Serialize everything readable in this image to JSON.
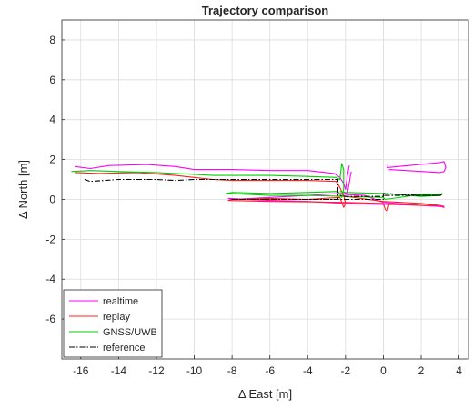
{
  "chart_data": {
    "type": "line",
    "title": "Trajectory comparison",
    "xlabel": "Δ East [m]",
    "ylabel": "Δ North [m]",
    "xlim": [
      -17,
      4.5
    ],
    "ylim": [
      -8,
      9
    ],
    "xticks": [
      -16,
      -14,
      -12,
      -10,
      -8,
      -6,
      -4,
      -2,
      0,
      2,
      4
    ],
    "yticks": [
      -6,
      -4,
      -2,
      0,
      2,
      4,
      6,
      8
    ],
    "xtick_labels": [
      "-16",
      "-14",
      "-12",
      "-10",
      "-8",
      "-6",
      "-4",
      "-2",
      "0",
      "2",
      "4"
    ],
    "ytick_labels": [
      "-6",
      "-4",
      "-2",
      "0",
      "2",
      "4",
      "6",
      "8"
    ],
    "grid": true,
    "legend_position": "bottom-left",
    "series": [
      {
        "name": "realtime",
        "color": "#ff00ff",
        "dash": "solid",
        "x": [
          -16.3,
          -15.5,
          -14.5,
          -12.5,
          -11.0,
          -10.0,
          -8.0,
          -6.0,
          -4.0,
          -2.6,
          -2.3,
          -2.1,
          -2.0,
          -1.9,
          -1.8,
          null,
          -1.7,
          -1.9,
          -2.3,
          -4.0,
          -6.0,
          -8.0,
          -8.2,
          -6.0,
          -4.0,
          -2.0,
          0.0,
          1.0,
          2.0,
          3.0,
          3.2,
          3.0,
          2.0,
          0.0,
          -1.0,
          -2.0,
          -2.2,
          null,
          0.2,
          0.2,
          3.0,
          3.2,
          3.3,
          3.2,
          3.0,
          0.3
        ],
        "y": [
          1.65,
          1.55,
          1.7,
          1.75,
          1.65,
          1.5,
          1.5,
          1.45,
          1.45,
          1.3,
          1.1,
          0.8,
          0.5,
          1.2,
          1.7,
          null,
          1.4,
          0.3,
          0.3,
          0.2,
          0.1,
          0.0,
          0.05,
          -0.05,
          -0.1,
          -0.2,
          -0.25,
          -0.25,
          -0.3,
          -0.35,
          -0.4,
          -0.35,
          -0.3,
          -0.15,
          0.2,
          0.25,
          0.3,
          null,
          1.75,
          1.6,
          1.85,
          1.9,
          1.6,
          1.4,
          1.35,
          1.5
        ]
      },
      {
        "name": "replay",
        "color": "#ff2020",
        "dash": "solid",
        "x": [
          -16.3,
          -15.0,
          -13.0,
          -11.0,
          -10.0,
          -9.0,
          -8.0,
          -6.0,
          -4.0,
          -2.5,
          -2.3,
          -2.1,
          -2.0,
          -2.1,
          -2.3,
          -4.0,
          -6.0,
          -8.0,
          -8.2,
          -6.0,
          -4.0,
          -2.0,
          0.0,
          0.1,
          0.2,
          0.3,
          2.0,
          3.0,
          3.2,
          3.0,
          2.0,
          0.0,
          -2.0,
          -2.2
        ],
        "y": [
          1.35,
          1.3,
          1.35,
          1.2,
          1.1,
          1.0,
          0.95,
          0.95,
          0.95,
          0.9,
          0.6,
          0.2,
          -0.2,
          -0.4,
          0.1,
          0.0,
          0.05,
          0.0,
          -0.05,
          -0.1,
          -0.12,
          -0.15,
          -0.2,
          -0.5,
          -0.6,
          -0.25,
          -0.3,
          -0.3,
          -0.35,
          -0.3,
          -0.2,
          -0.1,
          0.15,
          0.2
        ]
      },
      {
        "name": "GNSS/UWB",
        "color": "#00d000",
        "dash": "solid",
        "x": [
          -16.5,
          -15.5,
          -14.0,
          -12.0,
          -10.0,
          -9.0,
          -8.0,
          -6.0,
          -4.0,
          -2.5,
          -2.3,
          -2.2,
          -2.1,
          -2.1,
          -2.2,
          -2.4,
          -4.0,
          -6.0,
          -8.0,
          -8.3,
          -6.0,
          -4.0,
          -2.0,
          0.0,
          0.1,
          2.0,
          3.0,
          3.1,
          3.0,
          2.0,
          0.0,
          -2.0,
          -2.3
        ],
        "y": [
          1.4,
          1.45,
          1.4,
          1.35,
          1.25,
          1.2,
          1.2,
          1.2,
          1.15,
          1.1,
          1.0,
          1.8,
          1.5,
          0.5,
          0.1,
          0.4,
          0.35,
          0.3,
          0.35,
          0.3,
          0.2,
          0.2,
          0.15,
          0.1,
          0.0,
          0.25,
          0.25,
          0.3,
          0.2,
          0.15,
          0.3,
          0.35,
          0.4
        ]
      },
      {
        "name": "reference",
        "color": "#000000",
        "dash": "dashdot",
        "x": [
          -15.8,
          -15.5,
          -14.0,
          -12.0,
          -11.0,
          -10.0,
          -8.0,
          -6.0,
          -4.0,
          -2.4,
          -2.4,
          -4.0,
          -6.0,
          -8.0,
          -8.0,
          -6.0,
          -4.0,
          -2.0,
          0.0,
          0.0,
          2.0,
          3.0,
          3.1,
          3.0,
          2.0,
          0.0,
          0.0,
          -2.0,
          -2.3
        ],
        "y": [
          1.0,
          0.9,
          1.0,
          1.0,
          0.95,
          1.0,
          1.0,
          1.0,
          1.0,
          1.0,
          0.0,
          0.0,
          0.0,
          0.0,
          0.0,
          0.0,
          0.0,
          0.0,
          0.0,
          0.3,
          0.2,
          0.2,
          0.25,
          0.2,
          0.2,
          0.2,
          0.15,
          0.15,
          0.2
        ]
      }
    ]
  }
}
